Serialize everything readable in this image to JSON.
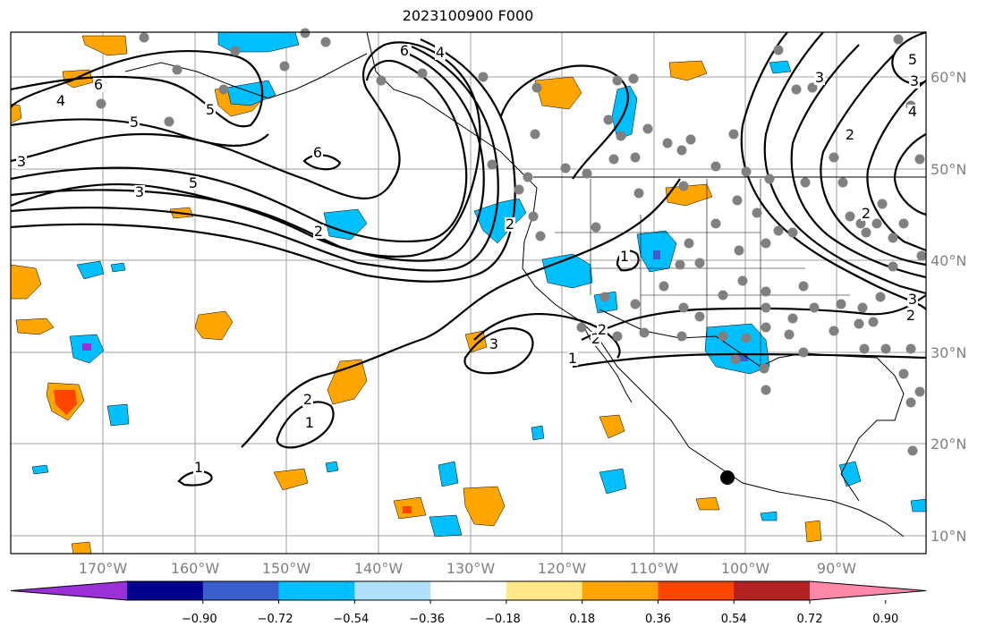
{
  "title": "2023100900 F000",
  "lat_labels": [
    "60°N",
    "50°N",
    "40°N",
    "30°N",
    "20°N",
    "10°N"
  ],
  "lon_labels": [
    "170°W",
    "160°W",
    "150°W",
    "140°W",
    "130°W",
    "120°W",
    "110°W",
    "100°W",
    "90°W"
  ],
  "colorbar": {
    "colors": [
      "#9b30d9",
      "#00008b",
      "#3a5fcd",
      "#00bfff",
      "#b0e0fa",
      "#ffffff",
      "#ffe88a",
      "#ffa500",
      "#ff4500",
      "#b22222",
      "#ff88aa"
    ],
    "tick_labels": [
      "−0.90",
      "−0.72",
      "−0.54",
      "−0.36",
      "−0.18",
      "0.18",
      "0.36",
      "0.54",
      "0.72",
      "0.90"
    ]
  },
  "contour_labels": [
    "6",
    "4",
    "6",
    "4",
    "5",
    "5",
    "3",
    "3",
    "5",
    "6",
    "2",
    "1",
    "1",
    "2",
    "3",
    "2",
    "1",
    "1",
    "2",
    "2",
    "3",
    "2",
    "4",
    "2",
    "5",
    "3",
    "2",
    "3"
  ],
  "colors": {
    "positive_fill": "#ffa500",
    "negative_fill": "#00bfff",
    "contour": "#000000",
    "coast": "#000000",
    "stations": "#808080",
    "grid": "#a0a0a0"
  }
}
